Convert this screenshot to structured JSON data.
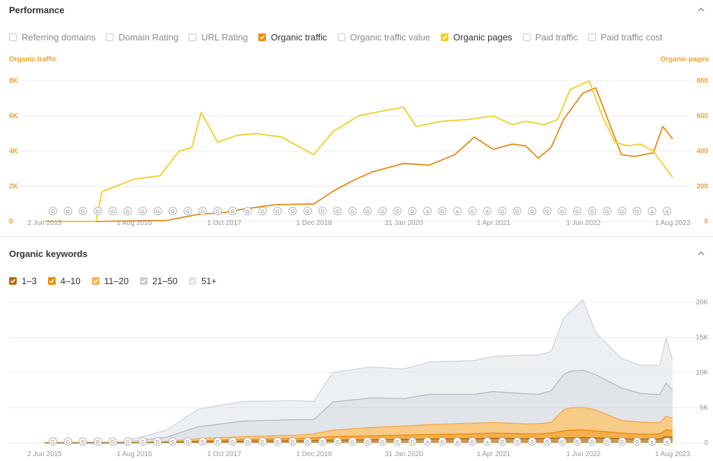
{
  "performance": {
    "title": "Performance",
    "metrics": [
      {
        "label": "Referring domains",
        "checked": false,
        "color": ""
      },
      {
        "label": "Domain Rating",
        "checked": false,
        "color": ""
      },
      {
        "label": "URL Rating",
        "checked": false,
        "color": ""
      },
      {
        "label": "Organic traffic",
        "checked": true,
        "color": "#f08c00"
      },
      {
        "label": "Organic traffic value",
        "checked": false,
        "color": ""
      },
      {
        "label": "Organic pages",
        "checked": true,
        "color": "#f5cf1b"
      },
      {
        "label": "Paid traffic",
        "checked": false,
        "color": ""
      },
      {
        "label": "Paid traffic cost",
        "checked": false,
        "color": ""
      }
    ],
    "left_axis_title": "Organic traffic",
    "right_axis_title": "Organic pages"
  },
  "keywords": {
    "title": "Organic keywords",
    "legend": [
      {
        "label": "1–3",
        "color": "#b86b0b"
      },
      {
        "label": "4–10",
        "color": "#f08c00"
      },
      {
        "label": "11–20",
        "color": "#f5b552"
      },
      {
        "label": "21–50",
        "color": "#c9ced6"
      },
      {
        "label": "51+",
        "color": "#dfe3e9"
      }
    ]
  },
  "colors": {
    "traffic": "#e8870f",
    "pages": "#f2cd1f",
    "axis_text": "#f0a12b",
    "grid": "#ececec",
    "tick_text": "#999999"
  },
  "chart_data": [
    {
      "type": "line",
      "x_ticks": [
        "2 Jun 2015",
        "1 Aug 2016",
        "1 Oct 2017",
        "1 Dec 2018",
        "31 Jan 2020",
        "1 Apr 2021",
        "1 Jun 2022",
        "1 Aug 2023"
      ],
      "y_ticks_left": [
        "0",
        "2K",
        "4K",
        "6K",
        "8K"
      ],
      "y_ticks_right": [
        "0",
        "200",
        "400",
        "600",
        "800"
      ],
      "ylim_left": [
        0,
        8000
      ],
      "ylim_right": [
        0,
        800
      ],
      "grid": true,
      "annotation_markers": [
        "G",
        "G",
        "G",
        "G",
        "G",
        "G",
        "G",
        "G",
        "G",
        "G",
        "G",
        "G",
        "G",
        "G",
        "G",
        "G",
        "G",
        "G",
        "G",
        "G",
        "G",
        "G",
        "G",
        "G",
        "G",
        "a",
        "G",
        "a",
        "G",
        "a",
        "G",
        "G",
        "G",
        "G",
        "G",
        "G",
        "G",
        "G",
        "G",
        "G",
        "a",
        "a"
      ],
      "series": [
        {
          "name": "Organic traffic",
          "axis": "left",
          "x": [
            "2015-06-02",
            "2016-02-01",
            "2016-08-01",
            "2017-01-01",
            "2017-06-01",
            "2017-10-01",
            "2018-01-01",
            "2018-06-01",
            "2018-12-01",
            "2019-03-01",
            "2019-06-01",
            "2019-09-01",
            "2020-01-31",
            "2020-06-01",
            "2020-10-01",
            "2021-01-01",
            "2021-04-01",
            "2021-07-01",
            "2021-09-01",
            "2021-11-01",
            "2022-01-01",
            "2022-03-01",
            "2022-06-01",
            "2022-08-01",
            "2022-10-01",
            "2022-12-01",
            "2023-02-01",
            "2023-05-01",
            "2023-06-15",
            "2023-08-01"
          ],
          "y": [
            0,
            0,
            30,
            60,
            400,
            500,
            700,
            950,
            1000,
            1700,
            2300,
            2800,
            3300,
            3200,
            3800,
            4800,
            4100,
            4400,
            4300,
            3600,
            4200,
            5800,
            7300,
            7600,
            5700,
            3800,
            3700,
            3900,
            5400,
            4700
          ]
        },
        {
          "name": "Organic pages",
          "axis": "right",
          "x": [
            "2015-06-02",
            "2016-02-01",
            "2016-03-01",
            "2016-08-01",
            "2016-12-01",
            "2017-03-01",
            "2017-05-01",
            "2017-06-15",
            "2017-09-01",
            "2017-12-01",
            "2018-03-01",
            "2018-07-01",
            "2018-12-01",
            "2019-03-01",
            "2019-07-01",
            "2019-11-01",
            "2020-01-31",
            "2020-04-01",
            "2020-08-01",
            "2020-12-01",
            "2021-04-01",
            "2021-07-01",
            "2021-09-01",
            "2021-12-01",
            "2022-02-01",
            "2022-04-01",
            "2022-07-01",
            "2022-09-01",
            "2022-11-01",
            "2023-01-01",
            "2023-03-01",
            "2023-05-01",
            "2023-08-01"
          ],
          "y": [
            0,
            0,
            170,
            240,
            260,
            400,
            420,
            620,
            450,
            490,
            500,
            480,
            380,
            510,
            600,
            630,
            650,
            540,
            570,
            580,
            600,
            550,
            570,
            550,
            580,
            750,
            800,
            600,
            450,
            430,
            440,
            400,
            250
          ]
        }
      ]
    },
    {
      "type": "area",
      "x_ticks": [
        "2 Jun 2015",
        "1 Aug 2016",
        "1 Oct 2017",
        "1 Dec 2018",
        "31 Jan 2020",
        "1 Apr 2021",
        "1 Jun 2022",
        "1 Aug 2023"
      ],
      "y_ticks": [
        "0",
        "5K",
        "10K",
        "15K",
        "20K"
      ],
      "ylim": [
        0,
        20000
      ],
      "stacked": true,
      "grid": true,
      "x": [
        "2015-06-02",
        "2016-06-01",
        "2017-01-01",
        "2017-06-01",
        "2018-01-01",
        "2018-09-01",
        "2018-12-01",
        "2019-03-01",
        "2019-09-01",
        "2020-01-31",
        "2020-06-01",
        "2021-01-01",
        "2021-04-01",
        "2021-09-01",
        "2021-11-01",
        "2022-01-01",
        "2022-03-01",
        "2022-04-01",
        "2022-06-01",
        "2022-08-01",
        "2022-12-01",
        "2023-03-01",
        "2023-06-01",
        "2023-07-01",
        "2023-08-01"
      ],
      "series": [
        {
          "name": "1–3",
          "values": [
            0,
            0,
            50,
            150,
            250,
            300,
            350,
            400,
            450,
            500,
            550,
            600,
            650,
            600,
            600,
            650,
            700,
            700,
            750,
            700,
            600,
            550,
            550,
            900,
            800
          ]
        },
        {
          "name": "4–10",
          "values": [
            0,
            0,
            50,
            150,
            250,
            300,
            350,
            500,
            550,
            600,
            650,
            700,
            750,
            700,
            700,
            750,
            1000,
            1100,
            1100,
            1000,
            800,
            700,
            700,
            1000,
            900
          ]
        },
        {
          "name": "11–20",
          "values": [
            0,
            0,
            100,
            300,
            400,
            500,
            600,
            900,
            1200,
            1300,
            1400,
            1500,
            1500,
            1400,
            1400,
            1500,
            3000,
            3200,
            3200,
            3000,
            1800,
            1700,
            1600,
            1900,
            1800
          ]
        },
        {
          "name": "21–50",
          "values": [
            0,
            50,
            600,
            1700,
            2200,
            2200,
            2000,
            4000,
            4200,
            3900,
            4300,
            4100,
            4400,
            4300,
            4200,
            4500,
            5000,
            5200,
            5300,
            5000,
            4600,
            4100,
            4000,
            4700,
            4000
          ]
        },
        {
          "name": "51+",
          "values": [
            0,
            100,
            1000,
            2500,
            2800,
            2700,
            2600,
            4200,
            4400,
            4200,
            4600,
            4800,
            5000,
            5500,
            5600,
            5600,
            8000,
            8400,
            10000,
            6000,
            4200,
            4000,
            4200,
            6500,
            4200
          ]
        }
      ]
    }
  ]
}
